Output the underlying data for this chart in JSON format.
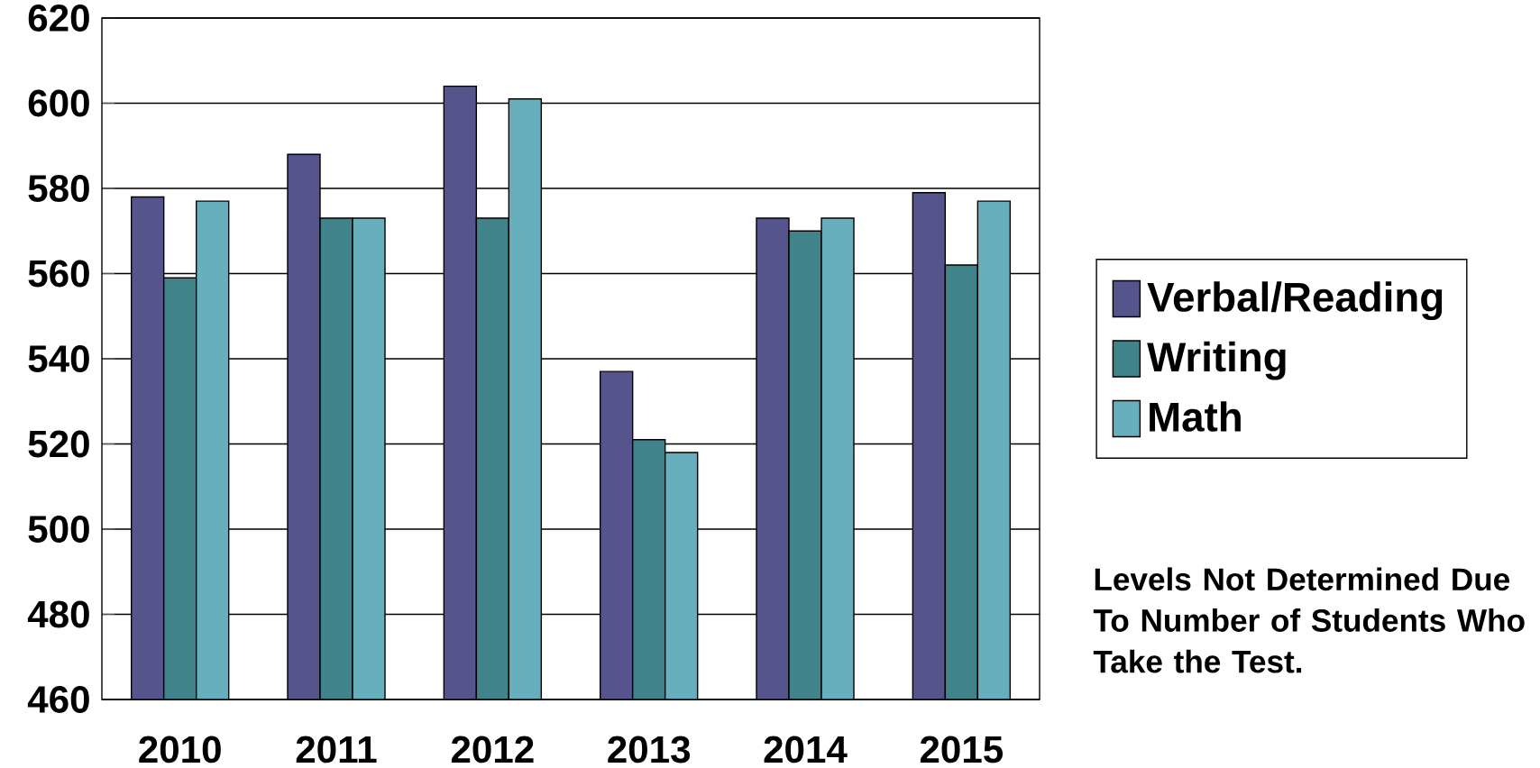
{
  "chart_data": {
    "type": "bar",
    "categories": [
      "2010",
      "2011",
      "2012",
      "2013",
      "2014",
      "2015"
    ],
    "series": [
      {
        "name": "Verbal/Reading",
        "color": "#56548c",
        "values": [
          578,
          588,
          604,
          537,
          573,
          579
        ]
      },
      {
        "name": "Writing",
        "color": "#41838a",
        "values": [
          559,
          573,
          573,
          521,
          570,
          562
        ]
      },
      {
        "name": "Math",
        "color": "#67afbd",
        "values": [
          577,
          573,
          601,
          518,
          573,
          577
        ]
      }
    ],
    "ylim": [
      460,
      620
    ],
    "yticks": [
      460,
      480,
      500,
      520,
      540,
      560,
      580,
      600,
      620
    ],
    "grid": "y",
    "legend": "right",
    "annotations": [
      "Levels Not Determined Due To Number of Students Who Take the Test."
    ]
  }
}
